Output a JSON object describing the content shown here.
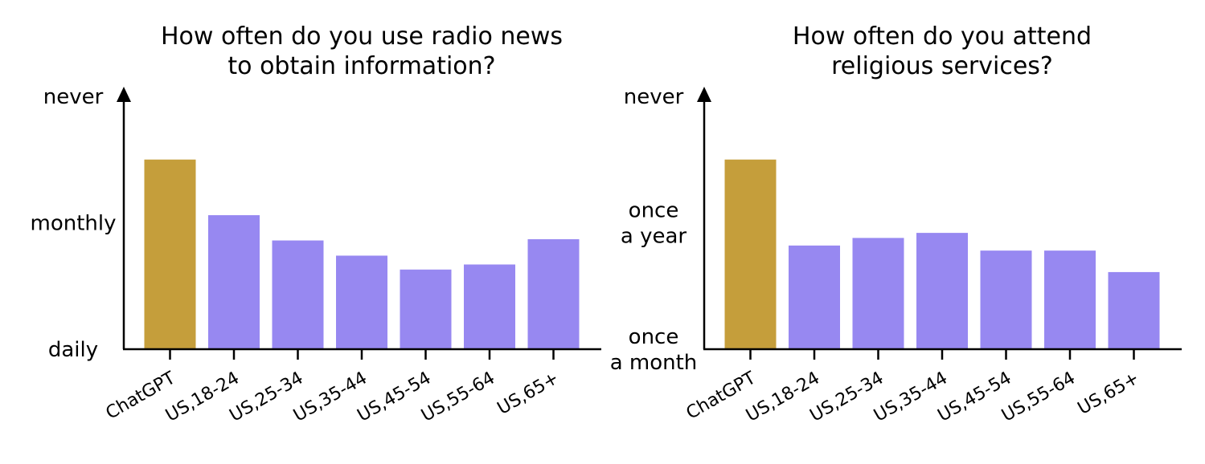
{
  "chart_data": [
    {
      "type": "bar",
      "title": [
        "How often do you use radio news",
        "to obtain information?"
      ],
      "categories": [
        "ChatGPT",
        "US,18-24",
        "US,25-34",
        "US,35-44",
        "US,45-54",
        "US,55-64",
        "US,65+"
      ],
      "values": [
        0.75,
        0.53,
        0.43,
        0.37,
        0.315,
        0.335,
        0.435
      ],
      "ylim": [
        0,
        1
      ],
      "y_ticks": [
        {
          "value": 0,
          "lines": [
            "daily"
          ]
        },
        {
          "value": 0.5,
          "lines": [
            "monthly"
          ]
        },
        {
          "value": 1,
          "lines": [
            "never"
          ]
        }
      ],
      "grid": false,
      "colors": [
        "#c59e3b",
        "#9788f1",
        "#9788f1",
        "#9788f1",
        "#9788f1",
        "#9788f1",
        "#9788f1"
      ]
    },
    {
      "type": "bar",
      "title": [
        "How often do you attend",
        "religious services?"
      ],
      "categories": [
        "ChatGPT",
        "US,18-24",
        "US,25-34",
        "US,35-44",
        "US,45-54",
        "US,55-64",
        "US,65+"
      ],
      "values": [
        0.75,
        0.41,
        0.44,
        0.46,
        0.39,
        0.39,
        0.305
      ],
      "ylim": [
        0,
        1
      ],
      "y_ticks": [
        {
          "value": 0,
          "lines": [
            "once",
            "a month"
          ]
        },
        {
          "value": 0.5,
          "lines": [
            "once",
            "a year"
          ]
        },
        {
          "value": 1,
          "lines": [
            "never"
          ]
        }
      ],
      "grid": false,
      "colors": [
        "#c59e3b",
        "#9788f1",
        "#9788f1",
        "#9788f1",
        "#9788f1",
        "#9788f1",
        "#9788f1"
      ]
    }
  ]
}
